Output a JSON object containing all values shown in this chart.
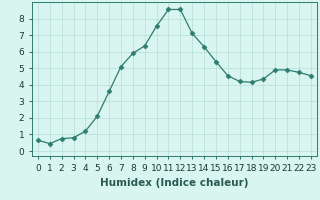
{
  "x": [
    0,
    1,
    2,
    3,
    4,
    5,
    6,
    7,
    8,
    9,
    10,
    11,
    12,
    13,
    14,
    15,
    16,
    17,
    18,
    19,
    20,
    21,
    22,
    23
  ],
  "y": [
    0.65,
    0.45,
    0.75,
    0.8,
    1.2,
    2.1,
    3.6,
    5.1,
    5.9,
    6.35,
    7.55,
    8.55,
    8.55,
    7.1,
    6.3,
    5.4,
    4.55,
    4.2,
    4.15,
    4.35,
    4.9,
    4.9,
    4.75,
    4.55
  ],
  "xlabel": "Humidex (Indice chaleur)",
  "xlim": [
    -0.5,
    23.5
  ],
  "ylim": [
    -0.3,
    9.0
  ],
  "yticks": [
    0,
    1,
    2,
    3,
    4,
    5,
    6,
    7,
    8
  ],
  "xticks": [
    0,
    1,
    2,
    3,
    4,
    5,
    6,
    7,
    8,
    9,
    10,
    11,
    12,
    13,
    14,
    15,
    16,
    17,
    18,
    19,
    20,
    21,
    22,
    23
  ],
  "line_color": "#2e7d6e",
  "marker": "D",
  "marker_size": 2.5,
  "bg_color": "#d8f5f0",
  "grid_color": "#b8dcd6",
  "xlabel_fontsize": 7.5,
  "tick_fontsize": 6.5
}
